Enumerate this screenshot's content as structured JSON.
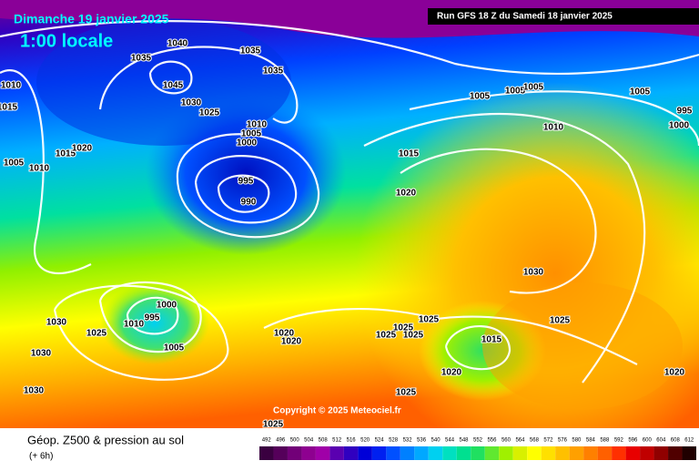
{
  "header": {
    "date": "Dimanche 19 janvier 2025",
    "time": "1:00 locale",
    "run": "Run GFS 18 Z du Samedi 18 janvier 2025",
    "copyright": "Copyright © 2025 Meteociel.fr"
  },
  "footer": {
    "title": "Géop. Z500 & pression au sol",
    "subtitle": "(+ 6h)"
  },
  "isobar_labels": [
    "1040",
    "1035",
    "1035",
    "1035",
    "1045",
    "1030",
    "1025",
    "1010",
    "1015",
    "1005",
    "1010",
    "1015",
    "1020",
    "1010",
    "1005",
    "1000",
    "995",
    "990",
    "1015",
    "1020",
    "1005",
    "1005",
    "1005",
    "1010",
    "1005",
    "995",
    "1000",
    "1030",
    "1025",
    "1000",
    "995",
    "1010",
    "1005",
    "1030",
    "1025",
    "1030",
    "1030",
    "1020",
    "1020",
    "1025",
    "1025",
    "1025",
    "1025",
    "1015",
    "1020",
    "1025",
    "1020",
    "1025"
  ],
  "legend": {
    "labels": [
      "492",
      "496",
      "500",
      "504",
      "508",
      "512",
      "516",
      "520",
      "524",
      "528",
      "532",
      "536",
      "540",
      "544",
      "548",
      "552",
      "556",
      "560",
      "564",
      "568",
      "572",
      "576",
      "580",
      "584",
      "588",
      "592",
      "596",
      "600",
      "604",
      "608",
      "612"
    ],
    "colors": [
      "#3a0040",
      "#55005a",
      "#720078",
      "#8e0090",
      "#a000a8",
      "#5a00b0",
      "#3000c0",
      "#0000d8",
      "#0020f0",
      "#0050ff",
      "#0080ff",
      "#00a8ff",
      "#00d0f0",
      "#00e0c0",
      "#00e090",
      "#20e060",
      "#60e830",
      "#a0f000",
      "#d8f000",
      "#ffff00",
      "#ffe000",
      "#ffc000",
      "#ffa000",
      "#ff8000",
      "#ff6000",
      "#ff3000",
      "#e80000",
      "#c00000",
      "#900000",
      "#500000",
      "#200000"
    ]
  }
}
